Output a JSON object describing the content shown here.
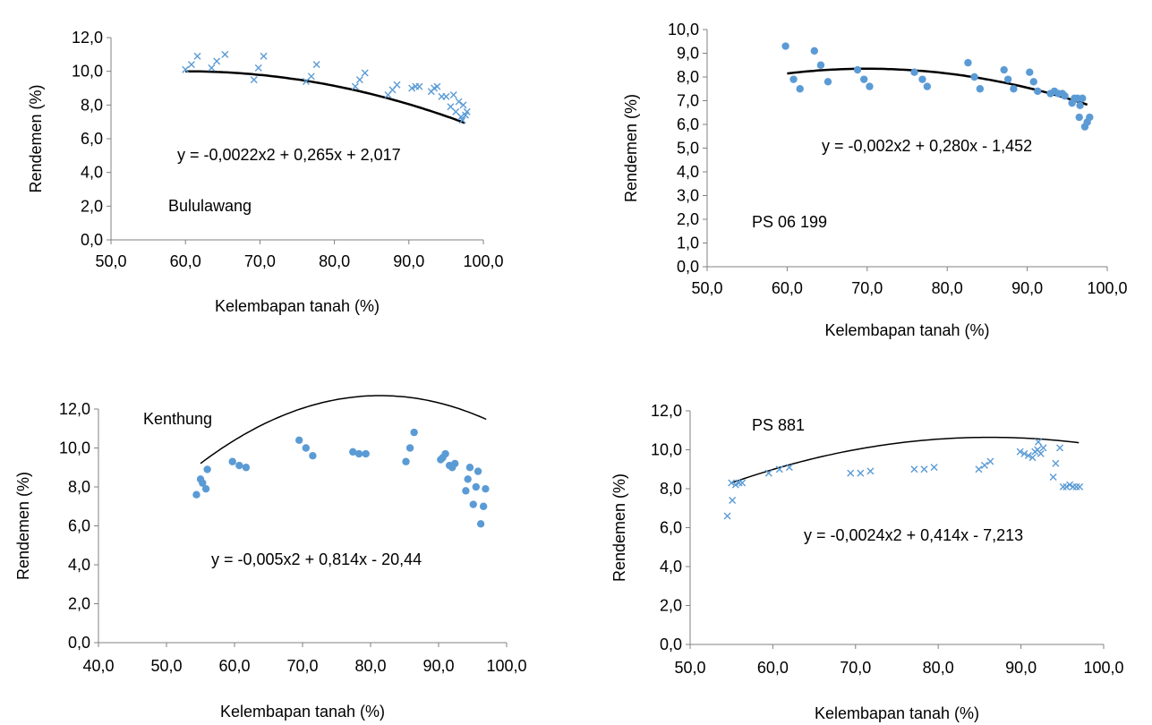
{
  "colors": {
    "marker": "#5b9bd5",
    "trend": "#000000",
    "axis": "#808080"
  },
  "chart_data": [
    {
      "type": "scatter",
      "panel_label": "Bululawang",
      "equation": "y = -0,0022x2 + 0,265x + 2,017",
      "xlabel": "Kelembapan tanah (%)",
      "ylabel": "Rendemen (%)",
      "xlim": [
        50,
        100
      ],
      "ylim": [
        0,
        12
      ],
      "x_ticks": [
        "50,0",
        "60,0",
        "70,0",
        "80,0",
        "90,0",
        "100,0"
      ],
      "y_ticks": [
        "0,0",
        "2,0",
        "4,0",
        "6,0",
        "8,0",
        "10,0",
        "12,0"
      ],
      "marker": "x",
      "trendline": {
        "a": -0.0022,
        "b": 0.265,
        "c": 2.017,
        "from": 60,
        "to": 97.5
      },
      "points": [
        [
          60.0,
          10.1
        ],
        [
          60.8,
          10.4
        ],
        [
          61.6,
          10.9
        ],
        [
          63.5,
          10.2
        ],
        [
          64.2,
          10.6
        ],
        [
          65.3,
          11.0
        ],
        [
          69.2,
          9.5
        ],
        [
          69.8,
          10.2
        ],
        [
          70.5,
          10.9
        ],
        [
          76.2,
          9.4
        ],
        [
          76.9,
          9.7
        ],
        [
          77.6,
          10.4
        ],
        [
          82.8,
          9.1
        ],
        [
          83.4,
          9.5
        ],
        [
          84.1,
          9.9
        ],
        [
          87.2,
          8.6
        ],
        [
          87.8,
          8.9
        ],
        [
          88.4,
          9.2
        ],
        [
          90.4,
          9.0
        ],
        [
          90.9,
          9.1
        ],
        [
          91.4,
          9.1
        ],
        [
          93.0,
          8.8
        ],
        [
          93.4,
          9.0
        ],
        [
          93.8,
          9.1
        ],
        [
          94.4,
          8.5
        ],
        [
          95.0,
          8.5
        ],
        [
          95.6,
          7.9
        ],
        [
          96.0,
          8.6
        ],
        [
          96.3,
          7.6
        ],
        [
          96.7,
          8.2
        ],
        [
          97.0,
          7.3
        ],
        [
          97.3,
          8.0
        ],
        [
          97.6,
          7.4
        ],
        [
          97.8,
          7.6
        ],
        [
          97.2,
          7.1
        ]
      ]
    },
    {
      "type": "scatter",
      "panel_label": "PS 06 199",
      "equation": "y = -0,002x2 + 0,280x - 1,452",
      "xlabel": "Kelembapan tanah (%)",
      "ylabel": "Rendemen (%)",
      "xlim": [
        50,
        100
      ],
      "ylim": [
        0,
        10
      ],
      "x_ticks": [
        "50,0",
        "60,0",
        "70,0",
        "80,0",
        "90,0",
        "100,0"
      ],
      "y_ticks": [
        "0,0",
        "1,0",
        "2,0",
        "3,0",
        "4,0",
        "5,0",
        "6,0",
        "7,0",
        "8,0",
        "9,0",
        "10,0"
      ],
      "marker": "dot",
      "trendline": {
        "a": -0.002,
        "b": 0.28,
        "c": -1.452,
        "from": 60,
        "to": 97.5
      },
      "points": [
        [
          59.8,
          9.3
        ],
        [
          60.8,
          7.9
        ],
        [
          61.6,
          7.5
        ],
        [
          63.4,
          9.1
        ],
        [
          64.2,
          8.5
        ],
        [
          65.1,
          7.8
        ],
        [
          68.8,
          8.3
        ],
        [
          69.6,
          7.9
        ],
        [
          70.3,
          7.6
        ],
        [
          75.9,
          8.2
        ],
        [
          76.9,
          7.9
        ],
        [
          77.5,
          7.6
        ],
        [
          82.6,
          8.6
        ],
        [
          83.4,
          8.0
        ],
        [
          84.1,
          7.5
        ],
        [
          87.1,
          8.3
        ],
        [
          87.6,
          7.9
        ],
        [
          88.3,
          7.5
        ],
        [
          90.3,
          8.2
        ],
        [
          90.8,
          7.8
        ],
        [
          91.3,
          7.4
        ],
        [
          92.9,
          7.3
        ],
        [
          93.4,
          7.4
        ],
        [
          93.9,
          7.3
        ],
        [
          94.4,
          7.3
        ],
        [
          94.7,
          7.2
        ],
        [
          95.6,
          6.9
        ],
        [
          95.9,
          7.1
        ],
        [
          96.3,
          7.1
        ],
        [
          96.5,
          6.3
        ],
        [
          96.9,
          7.1
        ],
        [
          97.2,
          5.9
        ],
        [
          97.5,
          6.1
        ],
        [
          97.8,
          6.3
        ],
        [
          96.6,
          6.8
        ]
      ]
    },
    {
      "type": "scatter",
      "panel_label": "Kenthung",
      "equation": "y = -0,005x2 + 0,814x - 20,44",
      "xlabel": "Kelembapan tanah (%)",
      "ylabel": "Rendemen (%)",
      "xlim": [
        40,
        100
      ],
      "ylim": [
        0,
        12
      ],
      "x_ticks": [
        "40,0",
        "50,0",
        "60,0",
        "70,0",
        "80,0",
        "90,0",
        "100,0"
      ],
      "y_ticks": [
        "0,0",
        "2,0",
        "4,0",
        "6,0",
        "8,0",
        "10,0",
        "12,0"
      ],
      "marker": "dot",
      "trendline": {
        "a": -0.005,
        "b": 0.814,
        "c": -20.44,
        "from": 55,
        "to": 97
      },
      "points": [
        [
          54.4,
          7.6
        ],
        [
          55.0,
          8.4
        ],
        [
          55.3,
          8.2
        ],
        [
          55.8,
          7.9
        ],
        [
          56.0,
          8.9
        ],
        [
          59.7,
          9.3
        ],
        [
          60.7,
          9.1
        ],
        [
          61.7,
          9.0
        ],
        [
          69.5,
          10.4
        ],
        [
          70.5,
          10.0
        ],
        [
          71.5,
          9.6
        ],
        [
          77.4,
          9.8
        ],
        [
          78.3,
          9.7
        ],
        [
          79.3,
          9.7
        ],
        [
          85.2,
          9.3
        ],
        [
          85.8,
          10.0
        ],
        [
          86.4,
          10.8
        ],
        [
          90.3,
          9.4
        ],
        [
          90.6,
          9.5
        ],
        [
          91.0,
          9.7
        ],
        [
          91.6,
          9.1
        ],
        [
          92.0,
          9.0
        ],
        [
          92.4,
          9.2
        ],
        [
          94.0,
          7.8
        ],
        [
          94.3,
          8.4
        ],
        [
          94.6,
          9.0
        ],
        [
          95.1,
          7.1
        ],
        [
          95.5,
          8.0
        ],
        [
          95.8,
          8.8
        ],
        [
          96.2,
          6.1
        ],
        [
          96.6,
          7.0
        ],
        [
          96.9,
          7.9
        ]
      ]
    },
    {
      "type": "scatter",
      "panel_label": "PS 881",
      "equation": "y = -0,0024x2 + 0,414x - 7,213",
      "xlabel": "Kelembapan tanah (%)",
      "ylabel": "Rendemen (%)",
      "xlim": [
        50,
        100
      ],
      "ylim": [
        0,
        12
      ],
      "x_ticks": [
        "50,0",
        "60,0",
        "70,0",
        "80,0",
        "90,0",
        "100,0"
      ],
      "y_ticks": [
        "0,0",
        "2,0",
        "4,0",
        "6,0",
        "8,0",
        "10,0",
        "12,0"
      ],
      "marker": "x",
      "trendline": {
        "a": -0.0024,
        "b": 0.414,
        "c": -7.213,
        "from": 55,
        "to": 97
      },
      "points": [
        [
          54.5,
          6.6
        ],
        [
          55.1,
          7.4
        ],
        [
          55.0,
          8.3
        ],
        [
          55.5,
          8.2
        ],
        [
          55.9,
          8.3
        ],
        [
          56.3,
          8.3
        ],
        [
          59.5,
          8.8
        ],
        [
          60.8,
          9.0
        ],
        [
          62.0,
          9.1
        ],
        [
          69.4,
          8.8
        ],
        [
          70.6,
          8.8
        ],
        [
          71.8,
          8.9
        ],
        [
          77.1,
          9.0
        ],
        [
          78.3,
          9.0
        ],
        [
          79.5,
          9.1
        ],
        [
          84.9,
          9.0
        ],
        [
          85.6,
          9.2
        ],
        [
          86.3,
          9.4
        ],
        [
          89.9,
          9.9
        ],
        [
          90.4,
          9.8
        ],
        [
          90.9,
          9.7
        ],
        [
          91.4,
          9.6
        ],
        [
          91.7,
          9.9
        ],
        [
          92.0,
          10.0
        ],
        [
          92.1,
          10.4
        ],
        [
          92.4,
          9.8
        ],
        [
          92.7,
          10.1
        ],
        [
          93.9,
          8.6
        ],
        [
          94.2,
          9.3
        ],
        [
          94.7,
          10.1
        ],
        [
          95.1,
          8.1
        ],
        [
          95.5,
          8.1
        ],
        [
          95.9,
          8.2
        ],
        [
          96.3,
          8.1
        ],
        [
          96.7,
          8.1
        ],
        [
          97.1,
          8.1
        ]
      ]
    }
  ]
}
